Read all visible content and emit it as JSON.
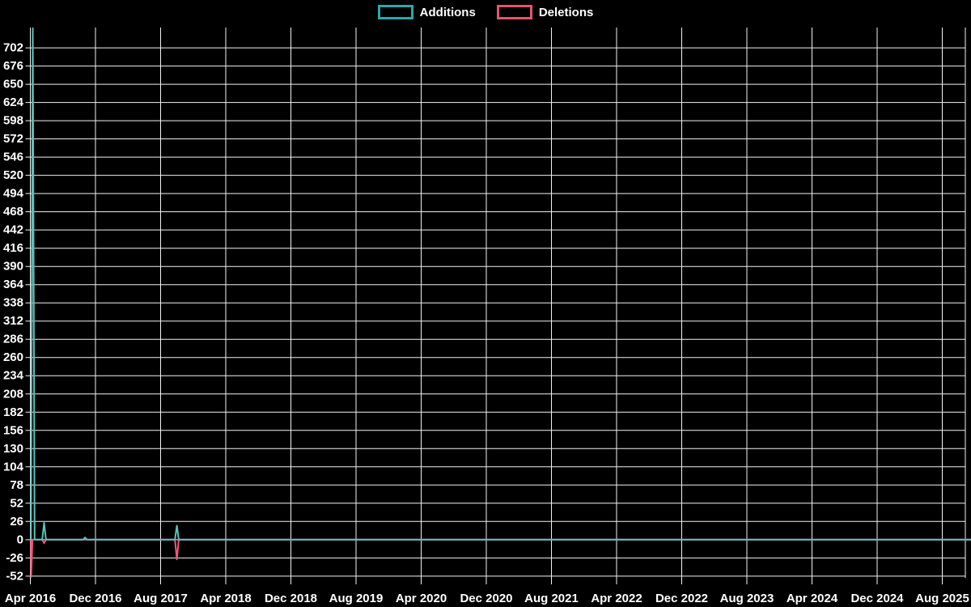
{
  "page": {
    "background": "#000000"
  },
  "legend": {
    "position": "top-center",
    "items": [
      {
        "label": "Additions",
        "swatch_border": "#2ba8a8"
      },
      {
        "label": "Deletions",
        "swatch_border": "#e2566b"
      }
    ]
  },
  "chart_data": {
    "type": "line",
    "title": "",
    "xlabel": "",
    "ylabel": "",
    "grid": true,
    "background": "#000000",
    "grid_color": "#f2f2f2",
    "legend_position": "top-center",
    "x_axis": {
      "type": "time",
      "tick_labels": [
        "Apr 2016",
        "Dec 2016",
        "Aug 2017",
        "Apr 2018",
        "Dec 2018",
        "Aug 2019",
        "Apr 2020",
        "Dec 2020",
        "Aug 2021",
        "Apr 2022",
        "Dec 2022",
        "Aug 2023",
        "Apr 2024",
        "Dec 2024",
        "Aug 2025"
      ],
      "tick_interval_months": 8,
      "first_tick_month": "2016-04",
      "last_data_week": "2025-11-23"
    },
    "y_axis": {
      "ticks": [
        702,
        676,
        650,
        624,
        598,
        572,
        546,
        520,
        494,
        468,
        442,
        416,
        390,
        364,
        338,
        312,
        286,
        260,
        234,
        208,
        182,
        156,
        130,
        104,
        78,
        52,
        26,
        0,
        -26,
        -52
      ],
      "tick_step": 26,
      "range": [
        -54.5,
        731
      ]
    },
    "series": [
      {
        "name": "Additions",
        "line_color": "#5cc1bc",
        "points": [
          [
            "2016-04-03",
            0
          ],
          [
            "2016-04-10",
            730
          ],
          [
            "2016-04-17",
            0
          ],
          [
            "2016-05-15",
            0
          ],
          [
            "2016-05-22",
            24
          ],
          [
            "2016-05-29",
            0
          ],
          [
            "2016-10-16",
            0
          ],
          [
            "2016-10-23",
            3
          ],
          [
            "2016-10-30",
            0
          ],
          [
            "2017-09-24",
            0
          ],
          [
            "2017-10-01",
            20
          ],
          [
            "2017-10-08",
            0
          ],
          [
            "2025-11-23",
            0
          ]
        ]
      },
      {
        "name": "Deletions",
        "line_color": "#f4567e",
        "points": [
          [
            "2016-04-03",
            0
          ],
          [
            "2016-04-04",
            -53
          ],
          [
            "2016-04-09",
            0
          ],
          [
            "2016-05-15",
            0
          ],
          [
            "2016-05-22",
            -5
          ],
          [
            "2016-05-29",
            0
          ],
          [
            "2017-09-24",
            0
          ],
          [
            "2017-10-01",
            -28
          ],
          [
            "2017-10-08",
            0
          ],
          [
            "2025-11-23",
            0
          ]
        ]
      }
    ]
  }
}
